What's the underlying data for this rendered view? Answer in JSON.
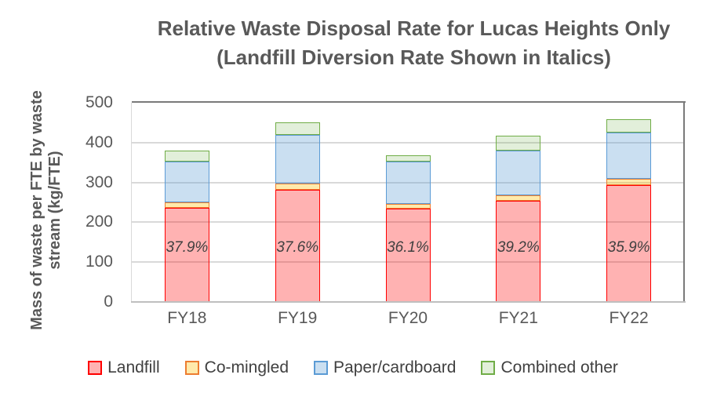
{
  "title": {
    "line1": "Relative Waste Disposal Rate for Lucas Heights Only",
    "line2": "(Landfill Diversion Rate Shown in Italics)"
  },
  "chart_data": {
    "type": "bar",
    "stacked": true,
    "title": "Relative Waste Disposal Rate for Lucas Heights Only (Landfill Diversion Rate Shown in Italics)",
    "ylabel": "Mass of waste per FTE by waste stream (kg/FTE)",
    "ylabel_line1": "Mass of waste per FTE by waste",
    "ylabel_line2": "stream (kg/FTE)",
    "xlabel": "",
    "categories": [
      "FY18",
      "FY19",
      "FY20",
      "FY21",
      "FY22"
    ],
    "series": [
      {
        "name": "Landfill",
        "border": "#ff0000",
        "fill": "rgba(255,0,0,0.30)",
        "values": [
          236,
          281,
          235,
          254,
          294
        ]
      },
      {
        "name": "Co-mingled",
        "border": "#ed7d31",
        "fill": "rgba(255,192,0,0.33)",
        "values": [
          14,
          17,
          12,
          13,
          15
        ]
      },
      {
        "name": "Paper/cardboard",
        "border": "#5b9bd5",
        "fill": "rgba(91,155,213,0.32)",
        "values": [
          102,
          122,
          105,
          113,
          117
        ]
      },
      {
        "name": "Combined other",
        "border": "#70ad47",
        "fill": "rgba(112,173,71,0.20)",
        "values": [
          28,
          30,
          16,
          38,
          32
        ]
      }
    ],
    "totals": [
      380,
      450,
      368,
      418,
      458
    ],
    "bar_labels": [
      "37.9%",
      "37.6%",
      "36.1%",
      "39.2%",
      "35.9%"
    ],
    "bar_labels_meaning": "Landfill Diversion Rate",
    "ylim": [
      0,
      500
    ],
    "yticks": [
      0,
      100,
      200,
      300,
      400,
      500
    ],
    "grid": true,
    "gridline_color": "#d9d9d9",
    "axis_text_color": "#595959",
    "title_color": "#595959",
    "legend_position": "bottom"
  }
}
